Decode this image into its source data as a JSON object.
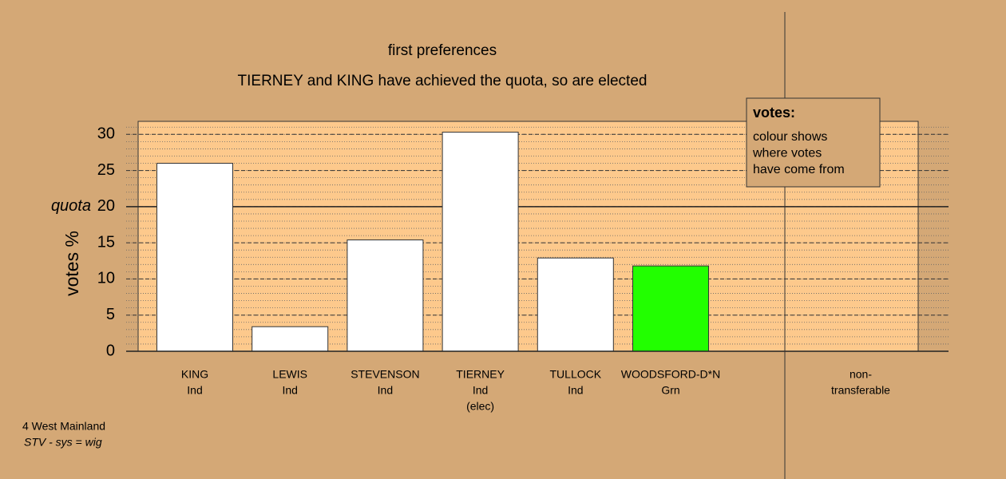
{
  "chart_data": {
    "type": "bar",
    "title": "first preferences",
    "subtitle": "TIERNEY and KING have achieved the quota, so are elected",
    "y_label": "votes %",
    "categories": [
      "KING",
      "LEWIS",
      "STEVENSON",
      "TIERNEY",
      "TULLOCK",
      "WOODSFORD-D*N"
    ],
    "parties": [
      "Ind",
      "Ind",
      "Ind",
      "Ind",
      "Ind",
      "Grn"
    ],
    "notes": [
      null,
      null,
      null,
      "(elec)",
      null,
      null
    ],
    "values": [
      26,
      3.4,
      15.4,
      30.3,
      12.9,
      11.8
    ],
    "colors": [
      "#ffffff",
      "#ffffff",
      "#ffffff",
      "#ffffff",
      "#ffffff",
      "#22ff00"
    ],
    "nontransferable": [
      "non-",
      "transferable"
    ],
    "ylim": [
      0,
      31.8
    ],
    "yticks": [
      0,
      5,
      10,
      15,
      20,
      25,
      30
    ],
    "minor_grid_step": 1,
    "quota": {
      "value": 20,
      "label": "quota"
    },
    "legend": {
      "title": "votes:",
      "lines": [
        "colour shows",
        "where votes",
        "have come from"
      ],
      "position": "upper right"
    },
    "footer": [
      "4 West Mainland",
      "STV - sys = wig"
    ]
  }
}
